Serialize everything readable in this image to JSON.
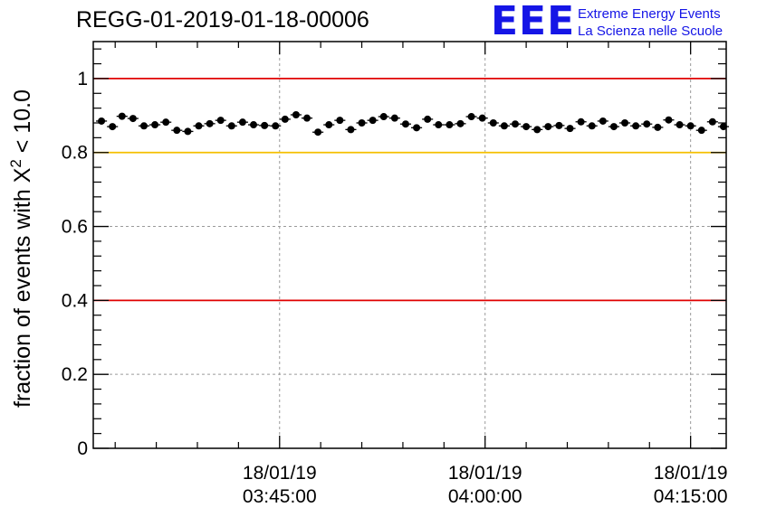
{
  "title": "REGG-01-2019-01-18-00006",
  "logo": {
    "mark": "EEE",
    "line1": "Extreme Energy Events",
    "line2": "La Scienza nelle Scuole"
  },
  "colors": {
    "red_line": "#e00000",
    "yellow_line": "#f5c000",
    "marker": "#000000",
    "logo_blue": "#1515e6",
    "grid": "#9a9a9a"
  },
  "chart_data": {
    "type": "scatter",
    "title": "REGG-01-2019-01-18-00006",
    "ylabel_prefix": "fraction of events with X",
    "ylabel_sup": "2",
    "ylabel_suffix": " < 10.0",
    "xlabel": "",
    "ylim": [
      0,
      1.1
    ],
    "xlim_minutes": [
      31.4,
      77.6
    ],
    "grid": true,
    "y_ticks": [
      0,
      0.2,
      0.4,
      0.6,
      0.8,
      1
    ],
    "y_tick_labels": [
      "0",
      "0.2",
      "0.4",
      "0.6",
      "0.8",
      "1"
    ],
    "x_ticks": [
      {
        "minutes": 45,
        "date": "18/01/19",
        "time": "03:45:00"
      },
      {
        "minutes": 60,
        "date": "18/01/19",
        "time": "04:00:00"
      },
      {
        "minutes": 75,
        "date": "18/01/19",
        "time": "04:15:00"
      }
    ],
    "reference_lines": [
      {
        "y": 1.0,
        "color": "red"
      },
      {
        "y": 0.8,
        "color": "yellow"
      },
      {
        "y": 0.4,
        "color": "red"
      }
    ],
    "series": [
      {
        "name": "fraction",
        "x_minutes": [
          32.0,
          32.8,
          33.5,
          34.3,
          35.1,
          35.9,
          36.7,
          37.5,
          38.3,
          39.1,
          39.9,
          40.7,
          41.5,
          42.3,
          43.1,
          43.9,
          44.7,
          45.4,
          46.2,
          47.0,
          47.8,
          48.6,
          49.4,
          50.2,
          51.0,
          51.8,
          52.6,
          53.4,
          54.2,
          55.0,
          55.8,
          56.6,
          57.4,
          58.2,
          59.0,
          59.8,
          60.6,
          61.4,
          62.2,
          63.0,
          63.8,
          64.6,
          65.4,
          66.2,
          67.0,
          67.8,
          68.6,
          69.4,
          70.2,
          71.0,
          71.8,
          72.6,
          73.4,
          74.2,
          75.0,
          75.8,
          76.6,
          77.4
        ],
        "values": [
          0.885,
          0.87,
          0.898,
          0.892,
          0.872,
          0.875,
          0.882,
          0.86,
          0.857,
          0.872,
          0.878,
          0.887,
          0.872,
          0.882,
          0.875,
          0.873,
          0.872,
          0.89,
          0.902,
          0.893,
          0.855,
          0.875,
          0.887,
          0.862,
          0.88,
          0.887,
          0.897,
          0.893,
          0.877,
          0.867,
          0.89,
          0.875,
          0.875,
          0.878,
          0.897,
          0.893,
          0.88,
          0.872,
          0.877,
          0.87,
          0.862,
          0.87,
          0.873,
          0.865,
          0.883,
          0.872,
          0.885,
          0.87,
          0.88,
          0.872,
          0.877,
          0.868,
          0.888,
          0.875,
          0.872,
          0.86,
          0.883,
          0.87
        ],
        "errors": [
          0.007,
          0.007,
          0.007,
          0.007,
          0.007,
          0.007,
          0.007,
          0.007,
          0.007,
          0.007,
          0.007,
          0.007,
          0.007,
          0.007,
          0.007,
          0.007,
          0.007,
          0.007,
          0.007,
          0.007,
          0.007,
          0.007,
          0.007,
          0.007,
          0.007,
          0.007,
          0.007,
          0.007,
          0.007,
          0.007,
          0.007,
          0.007,
          0.007,
          0.007,
          0.007,
          0.007,
          0.007,
          0.007,
          0.007,
          0.007,
          0.007,
          0.007,
          0.007,
          0.007,
          0.007,
          0.007,
          0.007,
          0.007,
          0.007,
          0.007,
          0.007,
          0.007,
          0.007,
          0.007,
          0.007,
          0.007,
          0.007,
          0.007
        ]
      }
    ]
  }
}
